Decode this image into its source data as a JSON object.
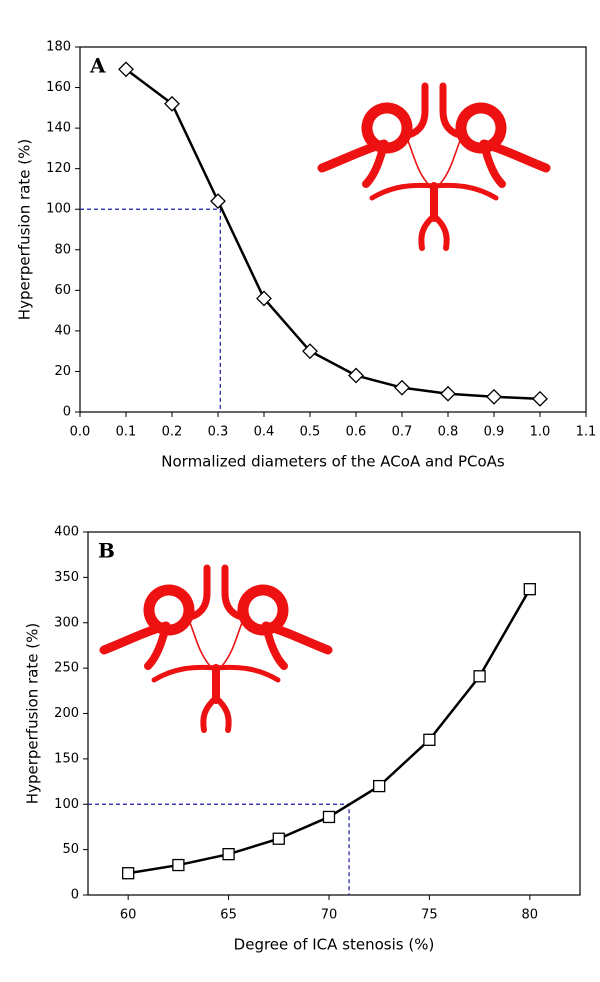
{
  "chart_data": [
    {
      "type": "line",
      "panel_label": "A",
      "xlabel": "Normalized diameters of the ACoA and PCoAs",
      "ylabel": "Hyperperfusion rate (%)",
      "x": [
        0.1,
        0.2,
        0.3,
        0.4,
        0.5,
        0.6,
        0.7,
        0.8,
        0.9,
        1.0
      ],
      "values": [
        169,
        152,
        104,
        56,
        30,
        18,
        12,
        9,
        7.5,
        6.5
      ],
      "color": "#000000",
      "marker": "diamond",
      "xlim": [
        0,
        1.1
      ],
      "xticks": [
        {
          "value": 0,
          "label": "0.0"
        },
        0.1,
        0.2,
        0.3,
        0.4,
        0.5,
        0.6,
        0.7,
        0.8,
        0.9,
        {
          "value": 1,
          "label": "1.0"
        },
        1.1
      ],
      "ylim": [
        0,
        180
      ],
      "yticks": [
        0,
        20,
        40,
        60,
        80,
        100,
        120,
        140,
        160,
        180
      ],
      "reference_x": 0.305,
      "reference_y": 100,
      "reference_color": "#1a1aa6"
    },
    {
      "type": "line",
      "panel_label": "B",
      "xlabel": "Degree of ICA stenosis (%)",
      "ylabel": "Hyperperfusion rate (%)",
      "x": [
        60,
        62.5,
        65,
        67.5,
        70,
        72.5,
        75,
        77.5,
        80
      ],
      "values": [
        24,
        33,
        45,
        62,
        86,
        120,
        171,
        241,
        337
      ],
      "color": "#000000",
      "marker": "square",
      "xlim": [
        58,
        82.5
      ],
      "xticks": [
        60,
        65,
        70,
        75,
        80
      ],
      "ylim": [
        0,
        400
      ],
      "yticks": [
        0,
        50,
        100,
        150,
        200,
        250,
        300,
        350,
        400
      ],
      "reference_x": 71,
      "reference_y": 100,
      "reference_color": "#1a1aa6"
    }
  ]
}
